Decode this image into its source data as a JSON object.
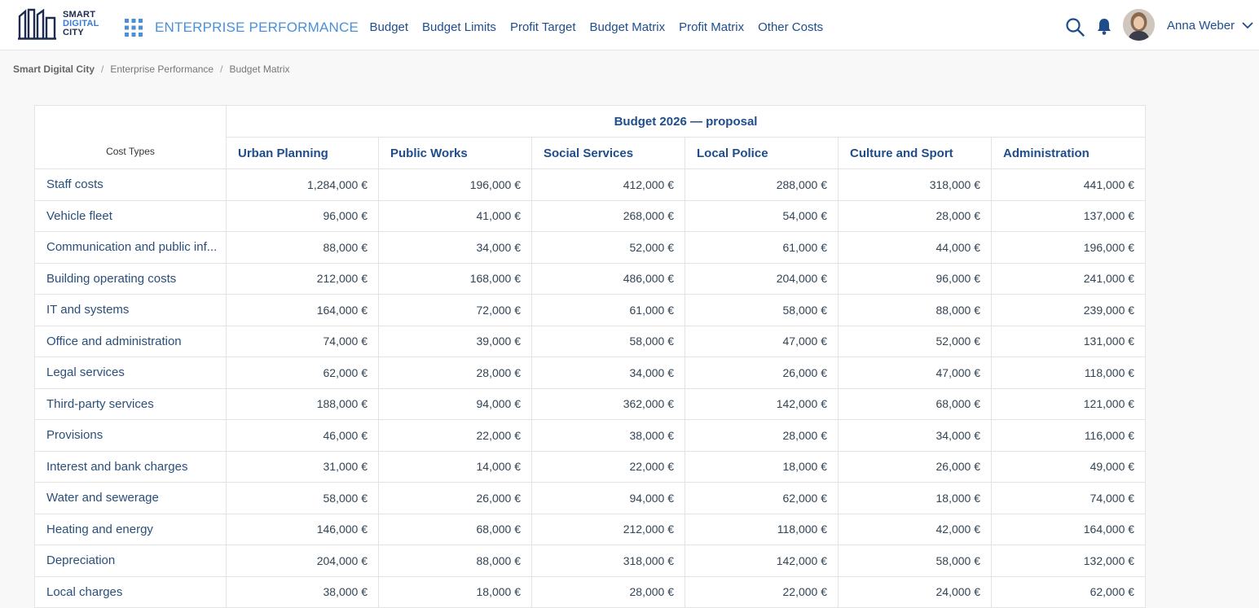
{
  "logo": {
    "line1": "SMART",
    "line2": "DIGITAL",
    "line3": "CITY"
  },
  "app_title": "ENTERPRISE PERFORMANCE",
  "nav": [
    "Budget",
    "Budget Limits",
    "Profit Target",
    "Budget Matrix",
    "Profit Matrix",
    "Other Costs"
  ],
  "user": {
    "name": "Anna Weber"
  },
  "breadcrumb": [
    "Smart Digital City",
    "Enterprise Performance",
    "Budget Matrix"
  ],
  "table": {
    "row_header": "Cost Types",
    "group_header": "Budget 2026 — proposal",
    "columns": [
      "Urban Planning",
      "Public Works",
      "Social Services",
      "Local Police",
      "Culture and Sport",
      "Administration"
    ],
    "rows": [
      {
        "label": "Staff costs",
        "values": [
          "1,284,000 €",
          "196,000 €",
          "412,000 €",
          "288,000 €",
          "318,000 €",
          "441,000 €"
        ]
      },
      {
        "label": "Vehicle fleet",
        "values": [
          "96,000 €",
          "41,000 €",
          "268,000 €",
          "54,000 €",
          "28,000 €",
          "137,000 €"
        ]
      },
      {
        "label": "Communication and public inf...",
        "values": [
          "88,000 €",
          "34,000 €",
          "52,000 €",
          "61,000 €",
          "44,000 €",
          "196,000 €"
        ]
      },
      {
        "label": "Building operating costs",
        "values": [
          "212,000 €",
          "168,000 €",
          "486,000 €",
          "204,000 €",
          "96,000 €",
          "241,000 €"
        ]
      },
      {
        "label": "IT and systems",
        "values": [
          "164,000 €",
          "72,000 €",
          "61,000 €",
          "58,000 €",
          "88,000 €",
          "239,000 €"
        ]
      },
      {
        "label": "Office and administration",
        "values": [
          "74,000 €",
          "39,000 €",
          "58,000 €",
          "47,000 €",
          "52,000 €",
          "131,000 €"
        ]
      },
      {
        "label": "Legal services",
        "values": [
          "62,000 €",
          "28,000 €",
          "34,000 €",
          "26,000 €",
          "47,000 €",
          "118,000 €"
        ]
      },
      {
        "label": "Third-party services",
        "values": [
          "188,000 €",
          "94,000 €",
          "362,000 €",
          "142,000 €",
          "68,000 €",
          "121,000 €"
        ]
      },
      {
        "label": "Provisions",
        "values": [
          "46,000 €",
          "22,000 €",
          "38,000 €",
          "28,000 €",
          "34,000 €",
          "116,000 €"
        ]
      },
      {
        "label": "Interest and bank charges",
        "values": [
          "31,000 €",
          "14,000 €",
          "22,000 €",
          "18,000 €",
          "26,000 €",
          "49,000 €"
        ]
      },
      {
        "label": "Water and sewerage",
        "values": [
          "58,000 €",
          "26,000 €",
          "94,000 €",
          "62,000 €",
          "18,000 €",
          "74,000 €"
        ]
      },
      {
        "label": "Heating and energy",
        "values": [
          "146,000 €",
          "68,000 €",
          "212,000 €",
          "118,000 €",
          "42,000 €",
          "164,000 €"
        ]
      },
      {
        "label": "Depreciation",
        "values": [
          "204,000 €",
          "88,000 €",
          "318,000 €",
          "142,000 €",
          "58,000 €",
          "132,000 €"
        ]
      },
      {
        "label": "Local charges",
        "values": [
          "38,000 €",
          "18,000 €",
          "28,000 €",
          "22,000 €",
          "24,000 €",
          "62,000 €"
        ]
      }
    ]
  }
}
